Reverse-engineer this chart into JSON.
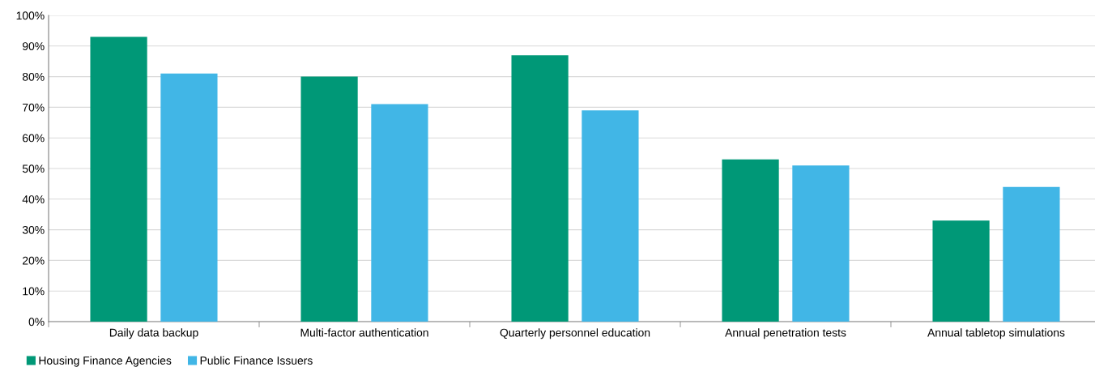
{
  "chart_data": {
    "type": "bar",
    "categories": [
      "Daily data backup",
      "Multi-factor authentication",
      "Quarterly personnel education",
      "Annual penetration tests",
      "Annual tabletop simulations"
    ],
    "series": [
      {
        "name": "Housing Finance Agencies",
        "color": "#009877",
        "values": [
          93,
          80,
          87,
          53,
          33
        ]
      },
      {
        "name": "Public Finance Issuers",
        "color": "#41b6e6",
        "values": [
          81,
          71,
          69,
          51,
          44
        ]
      }
    ],
    "ylim": [
      0,
      100
    ],
    "yticks": [
      {
        "value": 0,
        "label": "0%"
      },
      {
        "value": 10,
        "label": "10%"
      },
      {
        "value": 20,
        "label": "20%"
      },
      {
        "value": 30,
        "label": "30%"
      },
      {
        "value": 40,
        "label": "40%"
      },
      {
        "value": 50,
        "label": "50%"
      },
      {
        "value": 60,
        "label": "60%"
      },
      {
        "value": 70,
        "label": "70%"
      },
      {
        "value": 80,
        "label": "80%"
      },
      {
        "value": 90,
        "label": "90%"
      },
      {
        "value": 100,
        "label": "100%"
      }
    ],
    "grid": "y",
    "legend": "bottom left"
  }
}
